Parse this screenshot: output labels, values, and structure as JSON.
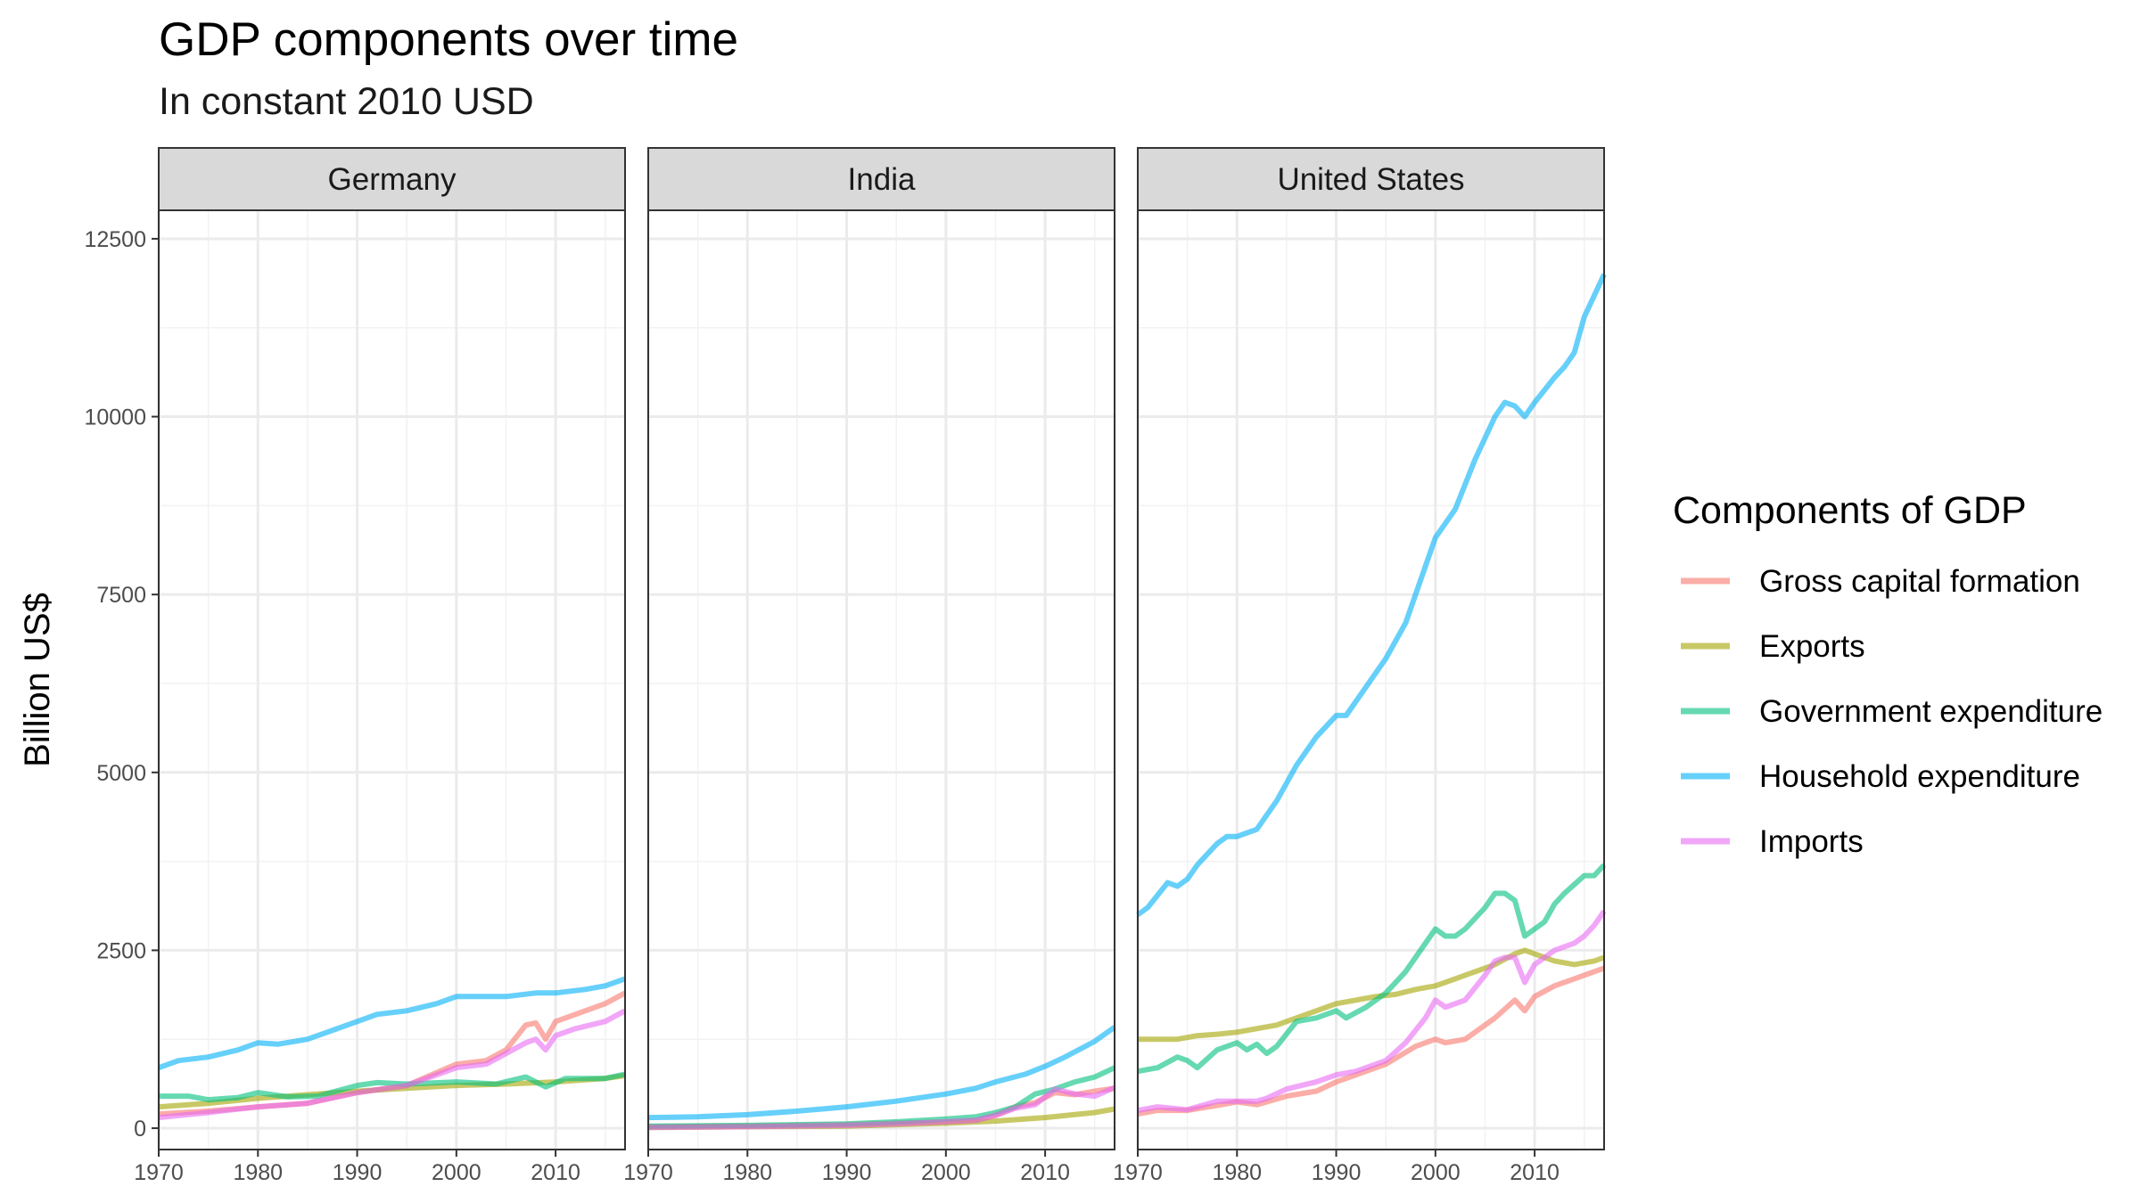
{
  "title": "GDP components over time",
  "subtitle": "In constant 2010 USD",
  "chart_data": {
    "type": "line",
    "facets": [
      "Germany",
      "India",
      "United States"
    ],
    "xlabel": "",
    "ylabel": "Billion US$",
    "xlim": [
      1970,
      2017
    ],
    "ylim": [
      -300,
      12900
    ],
    "x_ticks": [
      1970,
      1980,
      1990,
      2000,
      2010
    ],
    "y_ticks": [
      0,
      2500,
      5000,
      7500,
      10000,
      12500
    ],
    "grid": true,
    "legend": {
      "title": "Components of GDP",
      "position": "right",
      "entries": [
        {
          "name": "Gross capital formation",
          "color": "#F8766D"
        },
        {
          "name": "Exports",
          "color": "#A3A500"
        },
        {
          "name": "Government expenditure",
          "color": "#00BF7D"
        },
        {
          "name": "Household expenditure",
          "color": "#00B0F6"
        },
        {
          "name": "Imports",
          "color": "#E76BF3"
        }
      ]
    },
    "panels": [
      {
        "facet": "Germany",
        "series": [
          {
            "name": "Gross capital formation",
            "x": [
              1970,
              1975,
              1980,
              1985,
              1990,
              1995,
              2000,
              2003,
              2005,
              2007,
              2008,
              2009,
              2010,
              2012,
              2015,
              2017
            ],
            "y": [
              200,
              240,
              300,
              350,
              500,
              600,
              900,
              950,
              1100,
              1450,
              1480,
              1250,
              1500,
              1600,
              1750,
              1900
            ]
          },
          {
            "name": "Exports",
            "x": [
              1970,
              1975,
              1980,
              1985,
              1990,
              1995,
              2000,
              2005,
              2010,
              2015,
              2017
            ],
            "y": [
              300,
              350,
              420,
              470,
              520,
              560,
              600,
              620,
              650,
              700,
              740
            ]
          },
          {
            "name": "Government expenditure",
            "x": [
              1970,
              1973,
              1975,
              1978,
              1980,
              1983,
              1986,
              1990,
              1992,
              1995,
              2000,
              2004,
              2007,
              2009,
              2011,
              2015,
              2017
            ],
            "y": [
              450,
              450,
              400,
              430,
              500,
              440,
              450,
              600,
              640,
              620,
              650,
              620,
              720,
              580,
              700,
              700,
              760
            ]
          },
          {
            "name": "Household expenditure",
            "x": [
              1970,
              1972,
              1975,
              1978,
              1980,
              1982,
              1985,
              1988,
              1990,
              1992,
              1995,
              1998,
              2000,
              2003,
              2005,
              2008,
              2010,
              2013,
              2015,
              2017
            ],
            "y": [
              850,
              950,
              1000,
              1100,
              1200,
              1180,
              1250,
              1400,
              1500,
              1600,
              1650,
              1750,
              1850,
              1850,
              1850,
              1900,
              1900,
              1950,
              2000,
              2100
            ]
          },
          {
            "name": "Imports",
            "x": [
              1970,
              1975,
              1980,
              1985,
              1990,
              1995,
              1998,
              2000,
              2003,
              2005,
              2007,
              2008,
              2009,
              2010,
              2012,
              2015,
              2017
            ],
            "y": [
              150,
              220,
              300,
              350,
              500,
              600,
              750,
              850,
              900,
              1050,
              1200,
              1250,
              1100,
              1300,
              1400,
              1500,
              1650
            ]
          }
        ]
      },
      {
        "facet": "India",
        "series": [
          {
            "name": "Gross capital formation",
            "x": [
              1970,
              1980,
              1990,
              1995,
              2000,
              2003,
              2005,
              2007,
              2009,
              2011,
              2013,
              2015,
              2017
            ],
            "y": [
              20,
              30,
              50,
              70,
              90,
              110,
              180,
              300,
              360,
              500,
              470,
              520,
              560
            ]
          },
          {
            "name": "Exports",
            "x": [
              1970,
              1980,
              1990,
              1995,
              2000,
              2005,
              2010,
              2015,
              2017
            ],
            "y": [
              10,
              20,
              30,
              50,
              70,
              100,
              150,
              220,
              270
            ]
          },
          {
            "name": "Government expenditure",
            "x": [
              1970,
              1980,
              1990,
              1995,
              2000,
              2003,
              2005,
              2007,
              2009,
              2011,
              2013,
              2015,
              2017
            ],
            "y": [
              30,
              40,
              60,
              90,
              130,
              160,
              220,
              300,
              480,
              550,
              650,
              720,
              850
            ]
          },
          {
            "name": "Household expenditure",
            "x": [
              1970,
              1975,
              1980,
              1985,
              1990,
              1995,
              2000,
              2003,
              2005,
              2008,
              2010,
              2012,
              2015,
              2017
            ],
            "y": [
              150,
              160,
              190,
              240,
              300,
              380,
              480,
              560,
              650,
              760,
              870,
              1000,
              1220,
              1420
            ]
          },
          {
            "name": "Imports",
            "x": [
              1970,
              1980,
              1990,
              1995,
              2000,
              2003,
              2005,
              2007,
              2009,
              2011,
              2013,
              2015,
              2017
            ],
            "y": [
              10,
              20,
              40,
              60,
              90,
              110,
              180,
              280,
              330,
              550,
              480,
              450,
              570
            ]
          }
        ]
      },
      {
        "facet": "United States",
        "series": [
          {
            "name": "Gross capital formation",
            "x": [
              1970,
              1972,
              1975,
              1978,
              1980,
              1982,
              1985,
              1988,
              1990,
              1993,
              1995,
              1998,
              2000,
              2001,
              2003,
              2005,
              2006,
              2008,
              2009,
              2010,
              2012,
              2014,
              2016,
              2017
            ],
            "y": [
              200,
              250,
              250,
              320,
              370,
              330,
              450,
              520,
              650,
              800,
              900,
              1150,
              1250,
              1200,
              1250,
              1450,
              1550,
              1800,
              1650,
              1850,
              2000,
              2100,
              2200,
              2250
            ]
          },
          {
            "name": "Exports",
            "x": [
              1970,
              1972,
              1974,
              1976,
              1978,
              1980,
              1982,
              1984,
              1986,
              1988,
              1990,
              1992,
              1994,
              1996,
              1998,
              2000,
              2002,
              2004,
              2006,
              2008,
              2009,
              2010,
              2012,
              2014,
              2016,
              2017
            ],
            "y": [
              1250,
              1250,
              1250,
              1300,
              1320,
              1350,
              1400,
              1450,
              1550,
              1650,
              1750,
              1800,
              1850,
              1880,
              1950,
              2000,
              2100,
              2200,
              2300,
              2450,
              2500,
              2450,
              2350,
              2300,
              2350,
              2400
            ]
          },
          {
            "name": "Government expenditure",
            "x": [
              1970,
              1972,
              1974,
              1975,
              1976,
              1978,
              1980,
              1981,
              1982,
              1983,
              1984,
              1986,
              1988,
              1990,
              1991,
              1993,
              1995,
              1997,
              1999,
              2000,
              2001,
              2002,
              2003,
              2005,
              2006,
              2007,
              2008,
              2009,
              2010,
              2011,
              2012,
              2013,
              2015,
              2016,
              2017
            ],
            "y": [
              800,
              850,
              1000,
              950,
              850,
              1100,
              1200,
              1100,
              1180,
              1050,
              1150,
              1500,
              1550,
              1650,
              1550,
              1700,
              1900,
              2200,
              2600,
              2800,
              2700,
              2700,
              2800,
              3100,
              3300,
              3300,
              3200,
              2700,
              2800,
              2900,
              3150,
              3300,
              3550,
              3550,
              3700
            ]
          },
          {
            "name": "Household expenditure",
            "x": [
              1970,
              1971,
              1973,
              1974,
              1975,
              1976,
              1978,
              1979,
              1980,
              1981,
              1982,
              1984,
              1986,
              1988,
              1990,
              1991,
              1993,
              1995,
              1997,
              1999,
              2000,
              2002,
              2004,
              2006,
              2007,
              2008,
              2009,
              2010,
              2012,
              2013,
              2014,
              2015,
              2016,
              2017
            ],
            "y": [
              3000,
              3100,
              3450,
              3400,
              3500,
              3700,
              4000,
              4100,
              4100,
              4150,
              4200,
              4600,
              5100,
              5500,
              5800,
              5800,
              6200,
              6600,
              7100,
              7900,
              8300,
              8700,
              9400,
              10000,
              10200,
              10150,
              10000,
              10200,
              10550,
              10700,
              10900,
              11400,
              11700,
              12000
            ]
          },
          {
            "name": "Imports",
            "x": [
              1970,
              1972,
              1975,
              1978,
              1980,
              1982,
              1983,
              1985,
              1988,
              1990,
              1992,
              1995,
              1997,
              1999,
              2000,
              2001,
              2002,
              2003,
              2005,
              2006,
              2007,
              2008,
              2009,
              2010,
              2012,
              2014,
              2015,
              2016,
              2017
            ],
            "y": [
              250,
              300,
              260,
              380,
              380,
              380,
              420,
              550,
              650,
              750,
              800,
              950,
              1200,
              1550,
              1800,
              1700,
              1750,
              1800,
              2150,
              2350,
              2400,
              2400,
              2050,
              2300,
              2500,
              2600,
              2700,
              2850,
              3050
            ]
          }
        ]
      }
    ]
  }
}
